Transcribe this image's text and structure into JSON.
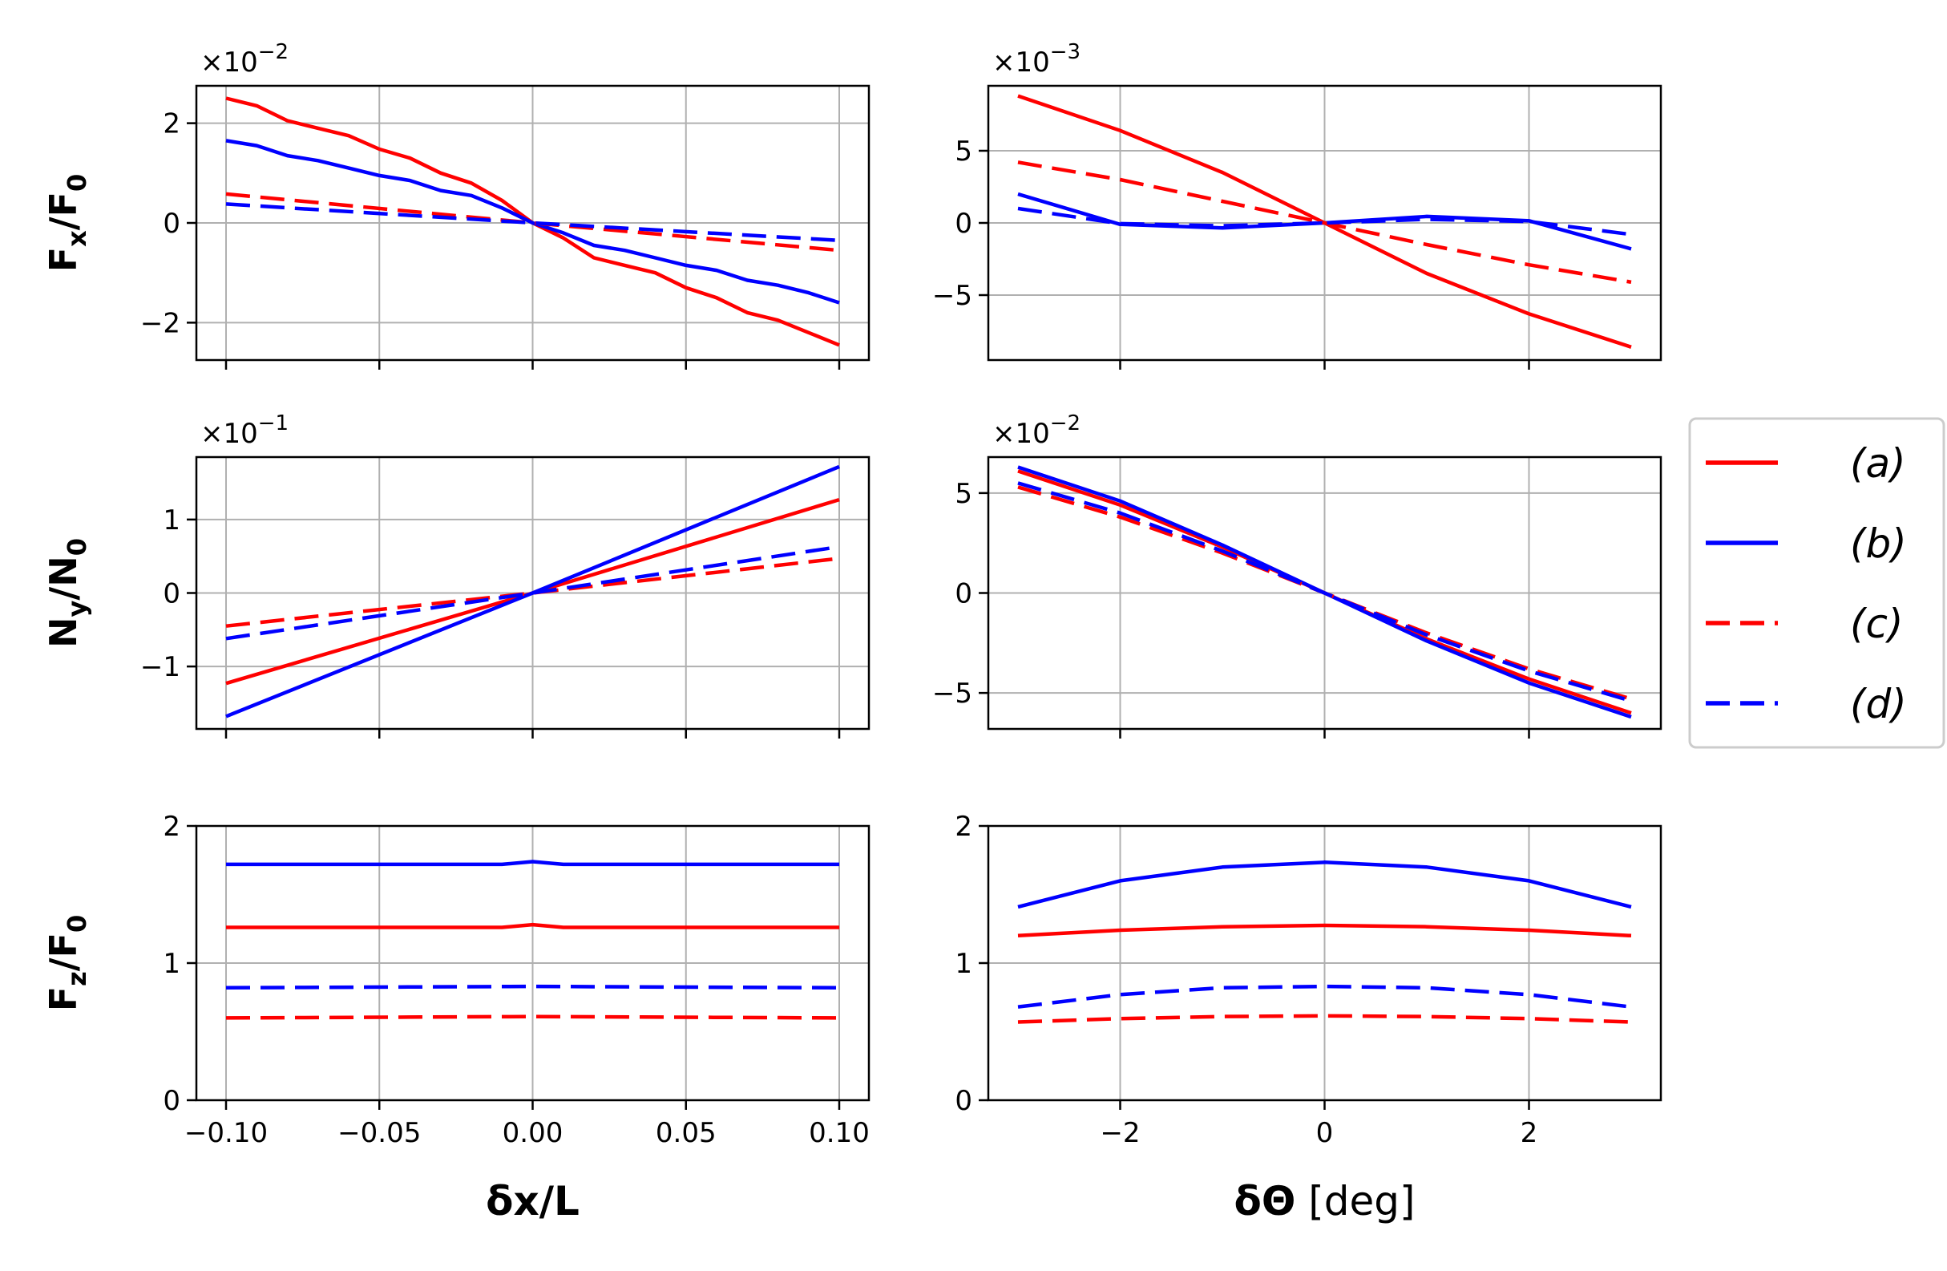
{
  "chart_data": [
    {
      "type": "line",
      "panel": "fx-vs-dx",
      "x_range": [
        -0.1,
        0.1
      ],
      "ylim": [
        -2.75,
        2.75
      ],
      "y_multiplier": "×10",
      "y_multiplier_exp": "−2",
      "ylabel_main": "F",
      "ylabel_sub": "x",
      "ylabel_den": "/F",
      "ylabel_den_sub": "0",
      "xticks": [
        "−0.10",
        "−0.05",
        "0.00",
        "0.05",
        "0.10"
      ],
      "xtick_values": [
        -0.1,
        -0.05,
        0,
        0.05,
        0.1
      ],
      "yticks": [
        "2",
        "0",
        "−2"
      ],
      "ytick_values": [
        2,
        0,
        -2
      ],
      "series": [
        {
          "name": "(a)",
          "color": "#ff0000",
          "dash": "solid",
          "x": [
            -0.1,
            -0.09,
            -0.08,
            -0.07,
            -0.06,
            -0.05,
            -0.04,
            -0.03,
            -0.02,
            -0.01,
            0,
            0.01,
            0.02,
            0.03,
            0.04,
            0.05,
            0.06,
            0.07,
            0.08,
            0.09,
            0.1
          ],
          "y": [
            2.5,
            2.35,
            2.05,
            1.9,
            1.75,
            1.48,
            1.3,
            1.0,
            0.8,
            0.45,
            0,
            -0.3,
            -0.7,
            -0.85,
            -1.0,
            -1.3,
            -1.5,
            -1.8,
            -1.95,
            -2.2,
            -2.45
          ]
        },
        {
          "name": "(b)",
          "color": "#0000ff",
          "dash": "solid",
          "x": [
            -0.1,
            -0.09,
            -0.08,
            -0.07,
            -0.06,
            -0.05,
            -0.04,
            -0.03,
            -0.02,
            -0.01,
            0,
            0.01,
            0.02,
            0.03,
            0.04,
            0.05,
            0.06,
            0.07,
            0.08,
            0.09,
            0.1
          ],
          "y": [
            1.65,
            1.55,
            1.35,
            1.25,
            1.1,
            0.95,
            0.85,
            0.65,
            0.55,
            0.3,
            0,
            -0.2,
            -0.45,
            -0.55,
            -0.7,
            -0.85,
            -0.95,
            -1.15,
            -1.25,
            -1.4,
            -1.6
          ]
        },
        {
          "name": "(c)",
          "color": "#ff0000",
          "dash": "dashed",
          "x": [
            -0.1,
            0,
            0.1
          ],
          "y": [
            0.58,
            0,
            -0.55
          ]
        },
        {
          "name": "(d)",
          "color": "#0000ff",
          "dash": "dashed",
          "x": [
            -0.1,
            0,
            0.1
          ],
          "y": [
            0.38,
            0,
            -0.35
          ]
        }
      ]
    },
    {
      "type": "line",
      "panel": "fx-vs-dtheta",
      "x_range": [
        -3,
        3
      ],
      "ylim": [
        -9.5,
        9.5
      ],
      "y_multiplier": "×10",
      "y_multiplier_exp": "−3",
      "xticks": [
        "−2",
        "0",
        "2"
      ],
      "xtick_values": [
        -2,
        0,
        2
      ],
      "yticks": [
        "5",
        "0",
        "−5"
      ],
      "ytick_values": [
        5,
        0,
        -5
      ],
      "series": [
        {
          "name": "(a)",
          "color": "#ff0000",
          "dash": "solid",
          "x": [
            -3,
            -2,
            -1,
            0,
            1,
            2,
            3
          ],
          "y": [
            8.8,
            6.4,
            3.5,
            0,
            -3.5,
            -6.3,
            -8.6
          ]
        },
        {
          "name": "(b)",
          "color": "#0000ff",
          "dash": "solid",
          "x": [
            -3,
            -2,
            -1,
            0,
            1,
            2,
            3
          ],
          "y": [
            2.0,
            -0.1,
            -0.35,
            0,
            0.45,
            0.15,
            -1.8
          ]
        },
        {
          "name": "(c)",
          "color": "#ff0000",
          "dash": "dashed",
          "x": [
            -3,
            -2,
            -1,
            0,
            1,
            2,
            3
          ],
          "y": [
            4.2,
            3.0,
            1.5,
            0,
            -1.5,
            -2.9,
            -4.1
          ]
        },
        {
          "name": "(d)",
          "color": "#0000ff",
          "dash": "dashed",
          "x": [
            -3,
            -2,
            -1,
            0,
            1,
            2,
            3
          ],
          "y": [
            1.0,
            -0.05,
            -0.2,
            0,
            0.25,
            0.1,
            -0.8
          ]
        }
      ]
    },
    {
      "type": "line",
      "panel": "ny-vs-dx",
      "x_range": [
        -0.1,
        0.1
      ],
      "ylim": [
        -1.85,
        1.85
      ],
      "y_multiplier": "×10",
      "y_multiplier_exp": "−1",
      "ylabel_main": "N",
      "ylabel_sub": "y",
      "ylabel_den": "/N",
      "ylabel_den_sub": "0",
      "xticks": [
        "−0.10",
        "−0.05",
        "0.00",
        "0.05",
        "0.10"
      ],
      "xtick_values": [
        -0.1,
        -0.05,
        0,
        0.05,
        0.1
      ],
      "yticks": [
        "1",
        "0",
        "−1"
      ],
      "ytick_values": [
        1,
        0,
        -1
      ],
      "series": [
        {
          "name": "(a)",
          "color": "#ff0000",
          "dash": "solid",
          "x": [
            -0.1,
            0,
            0.1
          ],
          "y": [
            -1.23,
            0,
            1.27
          ]
        },
        {
          "name": "(b)",
          "color": "#0000ff",
          "dash": "solid",
          "x": [
            -0.1,
            0,
            0.1
          ],
          "y": [
            -1.68,
            0,
            1.72
          ]
        },
        {
          "name": "(c)",
          "color": "#ff0000",
          "dash": "dashed",
          "x": [
            -0.1,
            0,
            0.1
          ],
          "y": [
            -0.45,
            0,
            0.47
          ]
        },
        {
          "name": "(d)",
          "color": "#0000ff",
          "dash": "dashed",
          "x": [
            -0.1,
            0,
            0.1
          ],
          "y": [
            -0.62,
            0,
            0.63
          ]
        }
      ]
    },
    {
      "type": "line",
      "panel": "ny-vs-dtheta",
      "x_range": [
        -3,
        3
      ],
      "ylim": [
        -6.8,
        6.8
      ],
      "y_multiplier": "×10",
      "y_multiplier_exp": "−2",
      "xticks": [
        "−2",
        "0",
        "2"
      ],
      "xtick_values": [
        -2,
        0,
        2
      ],
      "yticks": [
        "5",
        "0",
        "−5"
      ],
      "ytick_values": [
        5,
        0,
        -5
      ],
      "series": [
        {
          "name": "(a)",
          "color": "#ff0000",
          "dash": "solid",
          "x": [
            -3,
            -2,
            -1,
            0,
            1,
            2,
            3
          ],
          "y": [
            6.1,
            4.4,
            2.3,
            0,
            -2.3,
            -4.3,
            -6.0
          ]
        },
        {
          "name": "(b)",
          "color": "#0000ff",
          "dash": "solid",
          "x": [
            -3,
            -2,
            -1,
            0,
            1,
            2,
            3
          ],
          "y": [
            6.3,
            4.6,
            2.4,
            0,
            -2.4,
            -4.5,
            -6.2
          ]
        },
        {
          "name": "(c)",
          "color": "#ff0000",
          "dash": "dashed",
          "x": [
            -3,
            -2,
            -1,
            0,
            1,
            2,
            3
          ],
          "y": [
            5.3,
            3.8,
            2.0,
            0,
            -2.0,
            -3.8,
            -5.3
          ]
        },
        {
          "name": "(d)",
          "color": "#0000ff",
          "dash": "dashed",
          "x": [
            -3,
            -2,
            -1,
            0,
            1,
            2,
            3
          ],
          "y": [
            5.5,
            4.0,
            2.1,
            0,
            -2.1,
            -3.9,
            -5.4
          ]
        }
      ]
    },
    {
      "type": "line",
      "panel": "fz-vs-dx",
      "x_range": [
        -0.1,
        0.1
      ],
      "ylim": [
        0,
        2
      ],
      "ylabel_main": "F",
      "ylabel_sub": "z",
      "ylabel_den": "/F",
      "ylabel_den_sub": "0",
      "xlabel": "δx/L",
      "xticks": [
        "−0.10",
        "−0.05",
        "0.00",
        "0.05",
        "0.10"
      ],
      "xtick_values": [
        -0.1,
        -0.05,
        0,
        0.05,
        0.1
      ],
      "yticks": [
        "2",
        "1",
        "0"
      ],
      "ytick_values": [
        2,
        1,
        0
      ],
      "series": [
        {
          "name": "(a)",
          "color": "#ff0000",
          "dash": "solid",
          "x": [
            -0.1,
            -0.01,
            0,
            0.01,
            0.1
          ],
          "y": [
            1.26,
            1.26,
            1.28,
            1.26,
            1.26
          ]
        },
        {
          "name": "(b)",
          "color": "#0000ff",
          "dash": "solid",
          "x": [
            -0.1,
            -0.01,
            0,
            0.01,
            0.1
          ],
          "y": [
            1.72,
            1.72,
            1.74,
            1.72,
            1.72
          ]
        },
        {
          "name": "(c)",
          "color": "#ff0000",
          "dash": "dashed",
          "x": [
            -0.1,
            0,
            0.1
          ],
          "y": [
            0.6,
            0.61,
            0.6
          ]
        },
        {
          "name": "(d)",
          "color": "#0000ff",
          "dash": "dashed",
          "x": [
            -0.1,
            0,
            0.1
          ],
          "y": [
            0.82,
            0.83,
            0.82
          ]
        }
      ]
    },
    {
      "type": "line",
      "panel": "fz-vs-dtheta",
      "x_range": [
        -3,
        3
      ],
      "ylim": [
        0,
        2
      ],
      "xlabel": "δΘ",
      "xlabel_unit": " [deg]",
      "xticks": [
        "−2",
        "0",
        "2"
      ],
      "xtick_values": [
        -2,
        0,
        2
      ],
      "yticks": [
        "2",
        "1",
        "0"
      ],
      "ytick_values": [
        2,
        1,
        0
      ],
      "series": [
        {
          "name": "(a)",
          "color": "#ff0000",
          "dash": "solid",
          "x": [
            -3,
            -2,
            -1,
            0,
            1,
            2,
            3
          ],
          "y": [
            1.2,
            1.24,
            1.265,
            1.275,
            1.265,
            1.24,
            1.2
          ]
        },
        {
          "name": "(b)",
          "color": "#0000ff",
          "dash": "solid",
          "x": [
            -3,
            -2,
            -1,
            0,
            1,
            2,
            3
          ],
          "y": [
            1.41,
            1.6,
            1.7,
            1.735,
            1.7,
            1.6,
            1.41
          ]
        },
        {
          "name": "(c)",
          "color": "#ff0000",
          "dash": "dashed",
          "x": [
            -3,
            -2,
            -1,
            0,
            1,
            2,
            3
          ],
          "y": [
            0.57,
            0.595,
            0.61,
            0.615,
            0.61,
            0.595,
            0.57
          ]
        },
        {
          "name": "(d)",
          "color": "#0000ff",
          "dash": "dashed",
          "x": [
            -3,
            -2,
            -1,
            0,
            1,
            2,
            3
          ],
          "y": [
            0.68,
            0.77,
            0.82,
            0.83,
            0.82,
            0.77,
            0.68
          ]
        }
      ]
    }
  ],
  "legend": {
    "position": "center-right",
    "entries": [
      {
        "label": "(a)",
        "color": "#ff0000",
        "dash": "solid"
      },
      {
        "label": "(b)",
        "color": "#0000ff",
        "dash": "solid"
      },
      {
        "label": "(c)",
        "color": "#ff0000",
        "dash": "dashed"
      },
      {
        "label": "(d)",
        "color": "#0000ff",
        "dash": "dashed"
      }
    ]
  }
}
